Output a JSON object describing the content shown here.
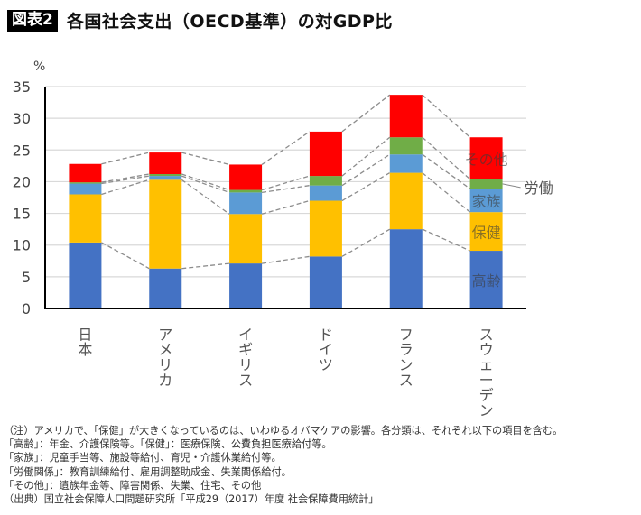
{
  "header": {
    "badge": "図表2",
    "title": "各国社会支出（OECD基準）の対GDP比"
  },
  "chart_data": {
    "type": "bar",
    "stacked": true,
    "title": "各国社会支出（OECD基準）の対GDP比",
    "ylabel": "%",
    "xlabel": "",
    "ylim": [
      0,
      35
    ],
    "yticks": [
      0,
      5,
      10,
      15,
      20,
      25,
      30,
      35
    ],
    "grid": true,
    "categories": [
      "日本",
      "アメリカ",
      "イギリス",
      "ドイツ",
      "フランス",
      "スウェーデン"
    ],
    "series": [
      {
        "name": "高齢",
        "color": "#4472C4",
        "values": [
          10.4,
          6.3,
          7.1,
          8.2,
          12.5,
          9.1
        ]
      },
      {
        "name": "保健",
        "color": "#FFC000",
        "values": [
          7.6,
          14.0,
          7.8,
          8.8,
          8.9,
          6.1
        ]
      },
      {
        "name": "家族",
        "color": "#5B9BD5",
        "values": [
          1.7,
          0.6,
          3.4,
          2.4,
          2.9,
          3.7
        ]
      },
      {
        "name": "労働",
        "color": "#70AD47",
        "values": [
          0.2,
          0.3,
          0.4,
          1.5,
          2.7,
          1.5
        ]
      },
      {
        "name": "その他",
        "color": "#FF0000",
        "values": [
          2.9,
          3.4,
          4.0,
          7.0,
          6.7,
          6.6
        ]
      }
    ],
    "legend": "inline-right-of-last-bar",
    "connector_lines": "dashed gray lines joining segment boundaries of adjacent bars"
  },
  "notes": [
    "（注）アメリカで、「保健」が大きくなっているのは、いわゆるオバマケアの影響。各分類は、それぞれ以下の項目を含む。",
    "「高齢」：年金、介護保険等。「保健」：医療保険、公費負担医療給付等。",
    "「家族」：児童手当等、施設等給付、育児・介護休業給付等。",
    "「労働関係」：教育訓練給付、雇用調整助成金、失業関係給付。",
    "「その他」：遺族年金等、障害関係、失業、住宅、その他",
    "（出典）国立社会保障人口問題研究所「平成29（2017）年度 社会保障費用統計」"
  ]
}
